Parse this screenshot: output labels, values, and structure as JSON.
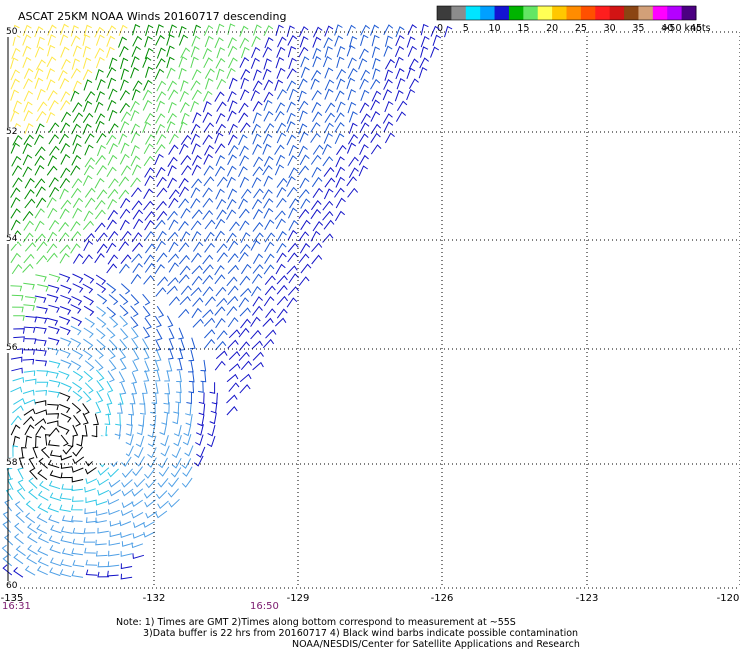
{
  "title": "ASCAT 25KM NOAA Winds 20160717 descending",
  "colorbar": {
    "labels": [
      "0",
      "5",
      "10",
      "15",
      "20",
      "25",
      "30",
      "35",
      "40",
      "45",
      ">50 knots"
    ],
    "colors": [
      "#3c3c3c",
      "#8c8c8c",
      "#00e5ff",
      "#00a0ff",
      "#1414d2",
      "#00b400",
      "#64e664",
      "#ffff55",
      "#ffc800",
      "#ff8c00",
      "#ff5000",
      "#ff1e1e",
      "#d21414",
      "#8b4513",
      "#d2a078",
      "#ff00ff",
      "#b400ff",
      "#4b0082"
    ]
  },
  "map": {
    "lat_labels": [
      "50",
      "52",
      "54",
      "56",
      "58",
      "60"
    ],
    "lon_labels": [
      "-135",
      "-132",
      "-129",
      "-126",
      "-123",
      "-120"
    ],
    "time_labels": [
      "16:31",
      "16:50"
    ],
    "barb_colors": {
      "yellow": "#ffe84a",
      "green_dark": "#008c00",
      "green_light": "#5ad75a",
      "blue_dark": "#1414c8",
      "blue_mid": "#1e5ad2",
      "blue_light": "#50a0e6",
      "cyan": "#32c8e6",
      "black": "#000000"
    }
  },
  "notes": {
    "line1": "Note: 1) Times are GMT 2)Times along bottom correspond to measurement at ~55S",
    "line2": "3)Data buffer is 22 hrs from 20160717 4) Black wind barbs indicate possible contamination",
    "line3": "NOAA/NESDIS/Center for Satellite Applications and Research"
  }
}
